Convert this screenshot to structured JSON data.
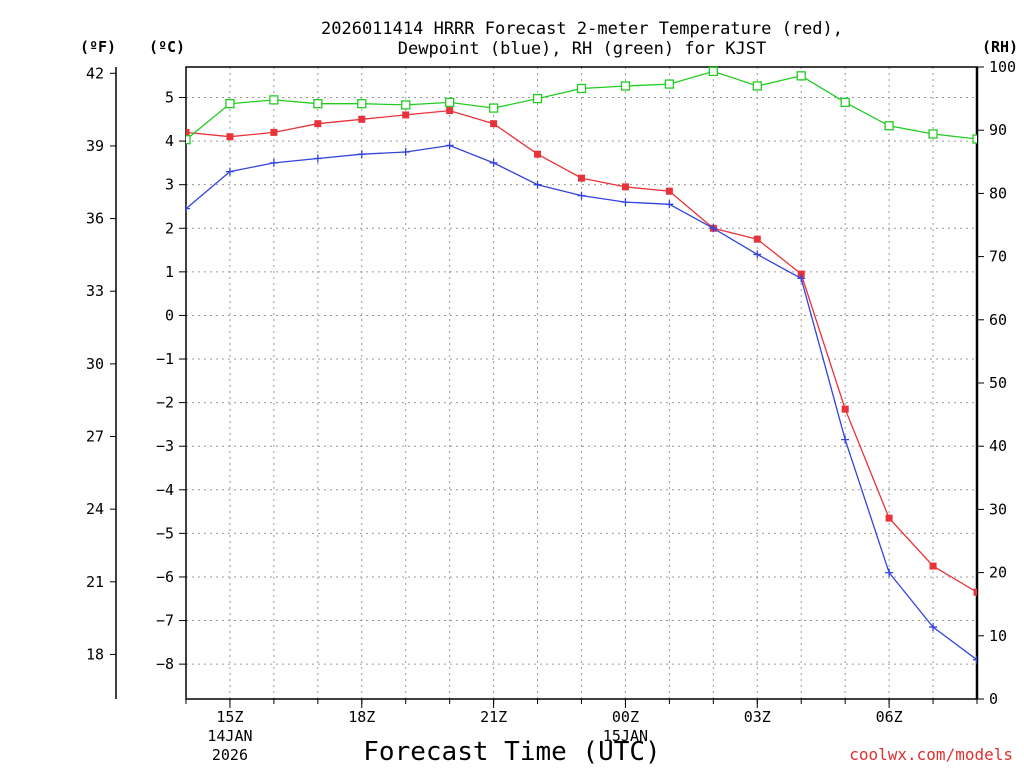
{
  "chart_data": {
    "type": "line",
    "title_line1": "2026011414 HRRR Forecast 2-meter Temperature (red),",
    "title_line2": "Dewpoint (blue), RH (green) for KJST",
    "xlabel": "Forecast Time (UTC)",
    "watermark": "coolwx.com/models",
    "units": {
      "fahrenheit": "(ºF)",
      "celsius": "(ºC)",
      "rh": "(RH)"
    },
    "x_hours": [
      14,
      15,
      16,
      17,
      18,
      19,
      20,
      21,
      22,
      23,
      24,
      25,
      26,
      27,
      28,
      29,
      30,
      31,
      32
    ],
    "x_range": [
      14,
      32
    ],
    "x_ticks": [
      {
        "hour": 15,
        "label": "15Z",
        "sub1": "14JAN",
        "sub2": "2026"
      },
      {
        "hour": 18,
        "label": "18Z",
        "sub1": "",
        "sub2": ""
      },
      {
        "hour": 21,
        "label": "21Z",
        "sub1": "",
        "sub2": ""
      },
      {
        "hour": 24,
        "label": "00Z",
        "sub1": "15JAN",
        "sub2": ""
      },
      {
        "hour": 27,
        "label": "03Z",
        "sub1": "",
        "sub2": ""
      },
      {
        "hour": 30,
        "label": "06Z",
        "sub1": "",
        "sub2": ""
      }
    ],
    "celsius_range": [
      -8.8,
      5.7
    ],
    "celsius_ticks": [
      {
        "v": 5,
        "label": "5"
      },
      {
        "v": 4,
        "label": "4"
      },
      {
        "v": 3,
        "label": "3"
      },
      {
        "v": 2,
        "label": "2"
      },
      {
        "v": 1,
        "label": "1"
      },
      {
        "v": 0,
        "label": "0"
      },
      {
        "v": -1,
        "label": "−1"
      },
      {
        "v": -2,
        "label": "−2"
      },
      {
        "v": -3,
        "label": "−3"
      },
      {
        "v": -4,
        "label": "−4"
      },
      {
        "v": -5,
        "label": "−5"
      },
      {
        "v": -6,
        "label": "−6"
      },
      {
        "v": -7,
        "label": "−7"
      },
      {
        "v": -8,
        "label": "−8"
      }
    ],
    "fahrenheit_ticks": [
      {
        "v": 42,
        "label": "42"
      },
      {
        "v": 39,
        "label": "39"
      },
      {
        "v": 36,
        "label": "36"
      },
      {
        "v": 33,
        "label": "33"
      },
      {
        "v": 30,
        "label": "30"
      },
      {
        "v": 27,
        "label": "27"
      },
      {
        "v": 24,
        "label": "24"
      },
      {
        "v": 21,
        "label": "21"
      },
      {
        "v": 18,
        "label": "18"
      }
    ],
    "rh_range": [
      0,
      100
    ],
    "rh_ticks": [
      {
        "v": 100,
        "label": "100"
      },
      {
        "v": 90,
        "label": "90"
      },
      {
        "v": 80,
        "label": "80"
      },
      {
        "v": 70,
        "label": "70"
      },
      {
        "v": 60,
        "label": "60"
      },
      {
        "v": 50,
        "label": "50"
      },
      {
        "v": 40,
        "label": "40"
      },
      {
        "v": 30,
        "label": "30"
      },
      {
        "v": 20,
        "label": "20"
      },
      {
        "v": 10,
        "label": "10"
      },
      {
        "v": 0,
        "label": "0"
      }
    ],
    "series": [
      {
        "name": "Temperature",
        "axis": "celsius",
        "color": "#e8333a",
        "marker": "filled-square",
        "values": [
          4.2,
          4.1,
          4.2,
          4.4,
          4.5,
          4.6,
          4.7,
          4.4,
          3.7,
          3.15,
          2.95,
          2.85,
          2.0,
          1.75,
          0.95,
          -2.15,
          -4.65,
          -5.75,
          -6.35
        ]
      },
      {
        "name": "Dewpoint",
        "axis": "celsius",
        "color": "#3344dd",
        "marker": "plus",
        "values": [
          2.45,
          3.3,
          3.5,
          3.6,
          3.7,
          3.75,
          3.9,
          3.5,
          3.0,
          2.75,
          2.6,
          2.55,
          2.0,
          1.4,
          0.85,
          -2.85,
          -5.9,
          -7.15,
          -7.9
        ]
      },
      {
        "name": "RH",
        "axis": "rh",
        "color": "#22cc22",
        "marker": "open-square",
        "values": [
          88.5,
          94.2,
          94.8,
          94.2,
          94.2,
          94.0,
          94.4,
          93.5,
          95.0,
          96.6,
          97.0,
          97.3,
          99.3,
          97.0,
          98.6,
          94.4,
          90.7,
          89.4,
          88.6
        ]
      }
    ]
  }
}
